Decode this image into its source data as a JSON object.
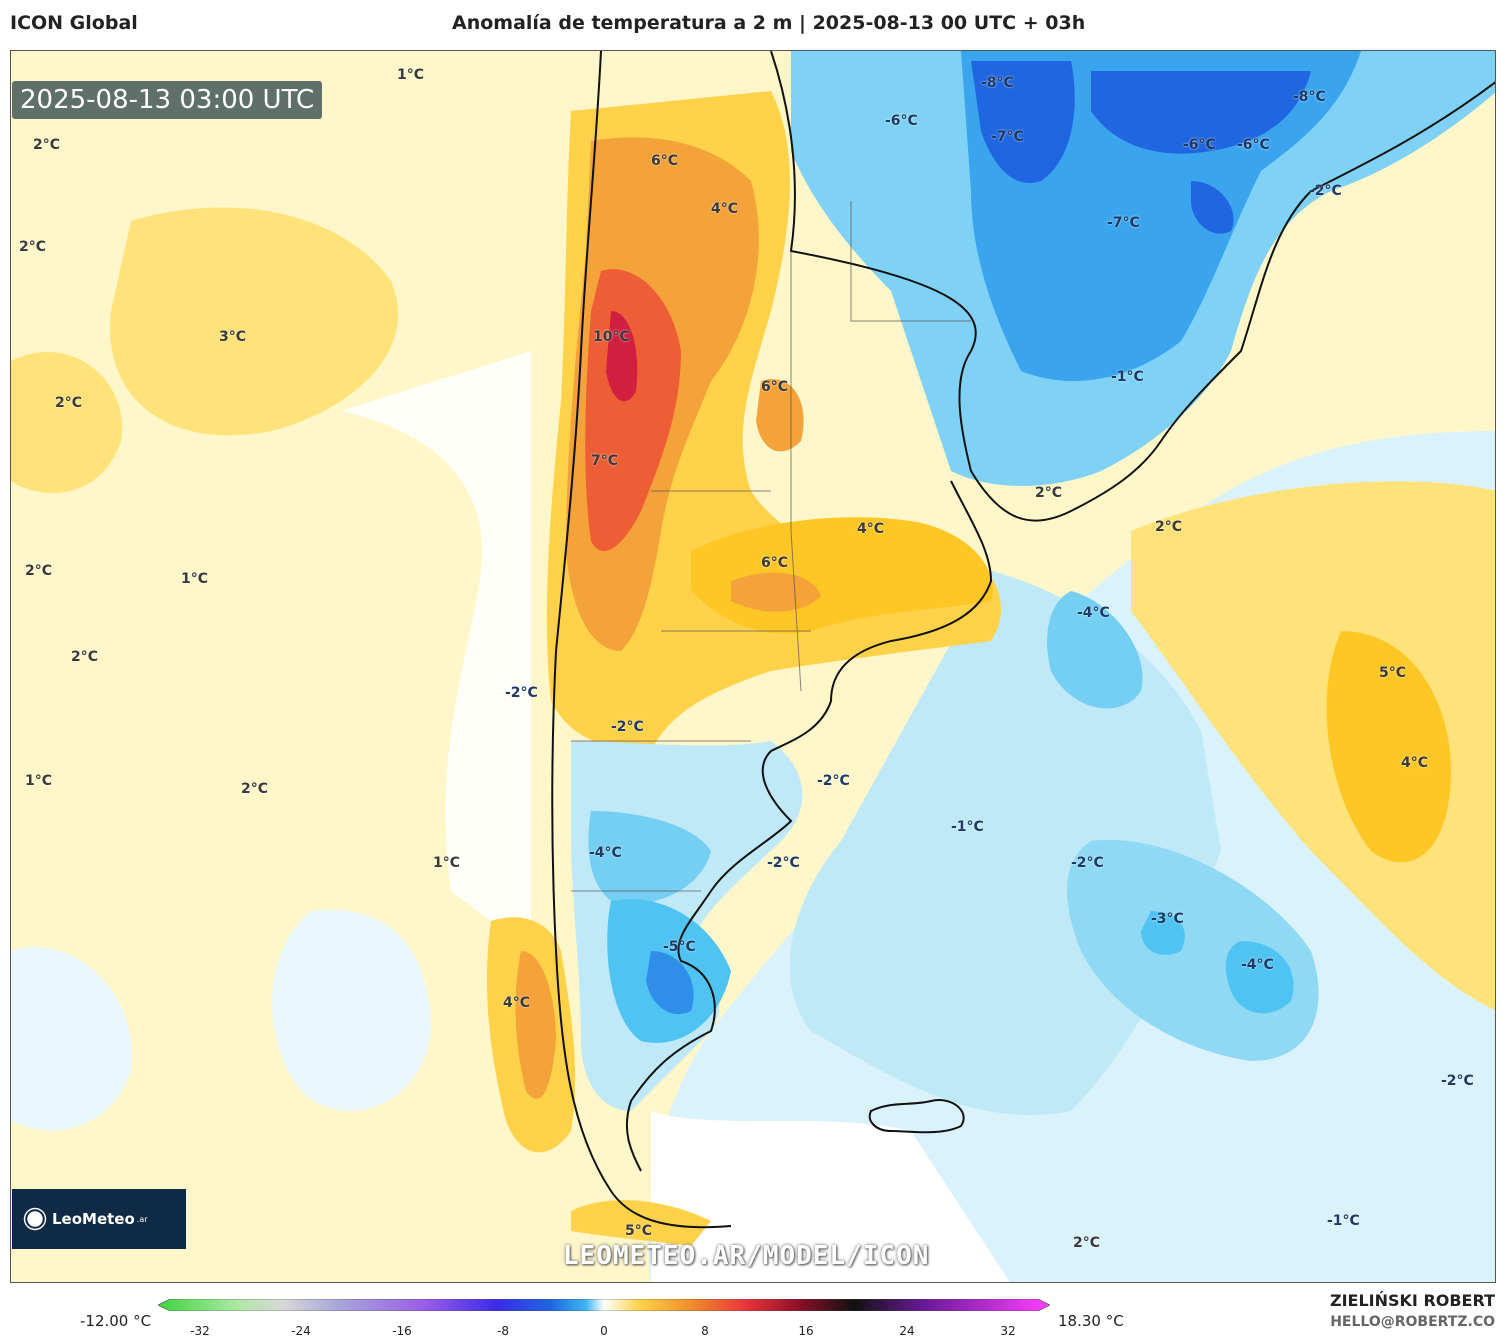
{
  "header": {
    "model": "ICON Global",
    "title": "Anomalía de temperatura a 2 m | 2025-08-13 00 UTC + 03h"
  },
  "map": {
    "timestamp": "2025-08-13 03:00 UTC",
    "watermark": "LEOMETEO.AR/MODEL/ICON",
    "logo_text": "LeoMeteo",
    "logo_suffix": ".ar",
    "labels": [
      "1°C",
      "2°C",
      "2°C",
      "3°C",
      "2°C",
      "2°C",
      "1°C",
      "2°C",
      "1°C",
      "2°C",
      "1°C",
      "6°C",
      "4°C",
      "10°C",
      "6°C",
      "7°C",
      "4°C",
      "6°C",
      "-2°C",
      "-2°C",
      "-4°C",
      "-5°C",
      "4°C",
      "-2°C",
      "-2°C",
      "-1°C",
      "-6°C",
      "-8°C",
      "-7°C",
      "-6°C",
      "-6°C",
      "-8°C",
      "-2°C",
      "-7°C",
      "-1°C",
      "2°C",
      "2°C",
      "-4°C",
      "5°C",
      "4°C",
      "-2°C",
      "-3°C",
      "-4°C",
      "-2°C",
      "2°C",
      "-1°C",
      "5°C"
    ],
    "colors": {
      "warm": "#ffd24a",
      "hot": "#f08a2a",
      "very_hot": "#e8333a",
      "cool": "#bfe9f7",
      "cold": "#3fb6f0",
      "very_cold": "#1f66e0"
    }
  },
  "colorbar": {
    "min_label": "-12.00 °C",
    "max_label": "18.30 °C",
    "ticks": [
      "-32",
      "-24",
      "-16",
      "-8",
      "0",
      "8",
      "16",
      "24",
      "32"
    ]
  },
  "credits": {
    "author": "ZIELIŃSKI ROBERT",
    "email": "HELLO@ROBERTZ.CO"
  }
}
